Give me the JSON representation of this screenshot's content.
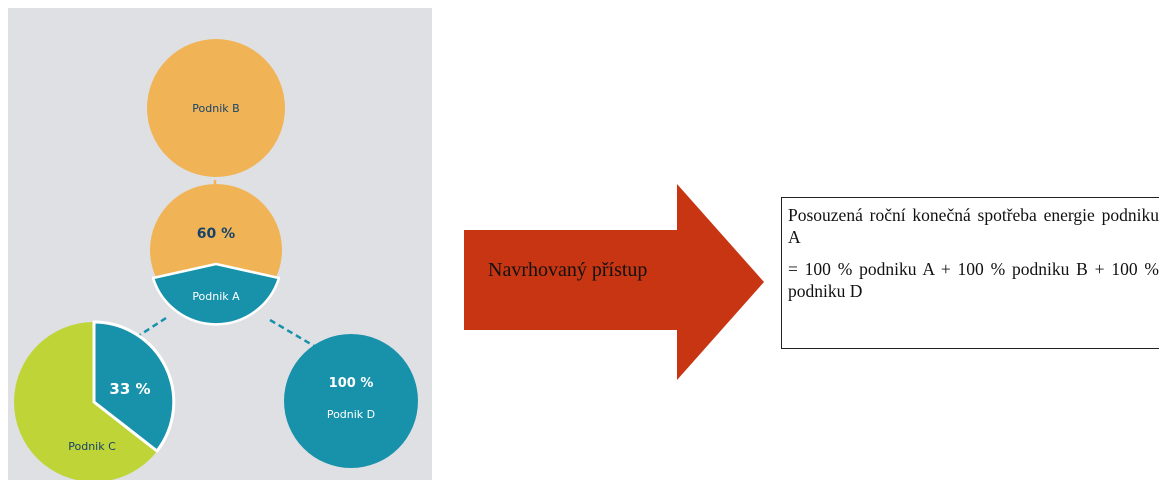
{
  "diagram": {
    "node_b": {
      "label": "Podnik B"
    },
    "node_a": {
      "percent": "60 %",
      "label": "Podnik A"
    },
    "node_c": {
      "percent": "33 %",
      "label": "Podnik C"
    },
    "node_d": {
      "percent": "100 %",
      "label": "Podnik D"
    },
    "colors": {
      "background": "#dfe0e4",
      "orange": "#f0b456",
      "teal": "#1892ab",
      "lime": "#bfd437",
      "dark_text": "#17436b",
      "white_text": "#ffffff"
    }
  },
  "arrow": {
    "label": "Navrhovaný přístup",
    "color": "#c73512"
  },
  "text_box": {
    "line1": "Posouzená roční konečná spotřeba energie podniku A",
    "line2": "= 100 % podniku A + 100 % podniku B + 100 % podniku D"
  }
}
